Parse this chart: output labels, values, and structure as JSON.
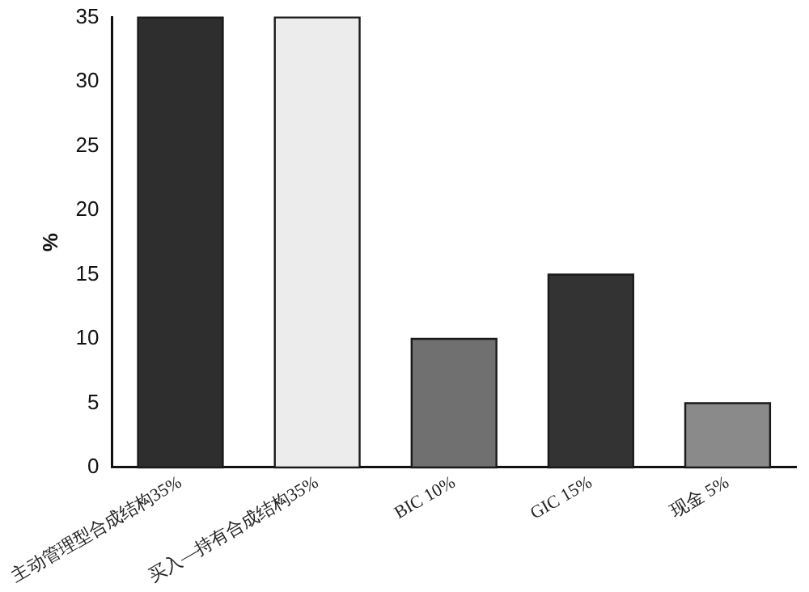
{
  "chart_data": {
    "type": "bar",
    "ylabel": "%",
    "categories": [
      "主动管理型合成结构35%",
      "买入—持有合成结构35%",
      "BIC 10%",
      "GIC 15%",
      "现金 5%"
    ],
    "values": [
      35,
      35,
      10,
      15,
      5
    ],
    "colors": [
      "#2e2e2e",
      "#ececec",
      "#707070",
      "#333333",
      "#8a8a8a"
    ],
    "ylim": [
      0,
      35
    ],
    "yticks": [
      0,
      5,
      10,
      15,
      20,
      25,
      30,
      35
    ],
    "grid": false,
    "legend": false
  }
}
